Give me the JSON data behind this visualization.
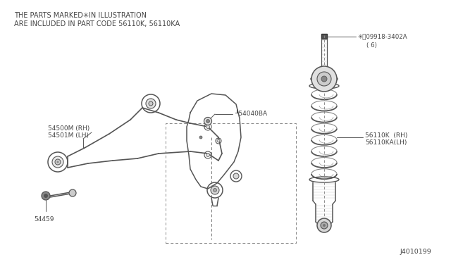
{
  "bg_color": "#ffffff",
  "line_color": "#555555",
  "text_color": "#444444",
  "header_line1": "THE PARTS MARKED✳IN ILLUSTRATION",
  "header_line2": "ARE INCLUDED IN PART CODE 56110K, 56110KA",
  "labels": {
    "54500M_RH": "54500M (RH)",
    "54501M_LH": "54501M (LH)",
    "54040BA": "┸54040BA",
    "54459": "54459",
    "08918_main": "✳Ⓣ09918-3402A",
    "08918_6": "( 6)",
    "56110K": "56110K  (RH)",
    "56110KA": "56110KA(LH)"
  },
  "diagram_id": "J4010199"
}
